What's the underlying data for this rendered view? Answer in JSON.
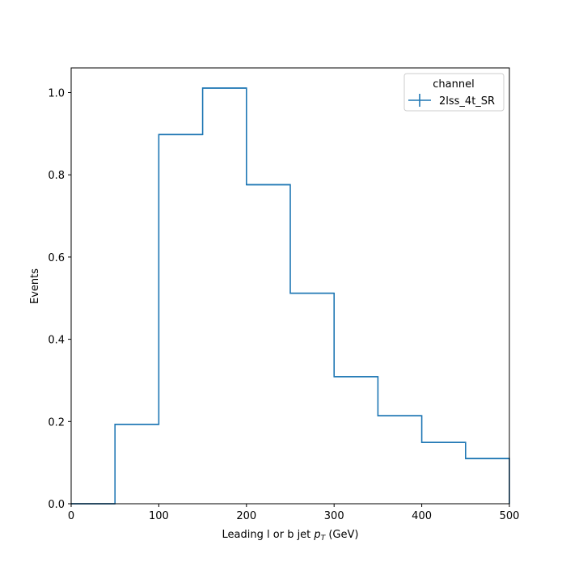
{
  "chart_data": {
    "type": "step",
    "title": "",
    "xlabel_prefix": "Leading l or b jet ",
    "xlabel_var": "p",
    "xlabel_sub": "T",
    "xlabel_suffix": " (GeV)",
    "ylabel": "Events",
    "xlim": [
      0,
      500
    ],
    "ylim": [
      0,
      1.06
    ],
    "xticks": [
      0,
      100,
      200,
      300,
      400,
      500
    ],
    "xtick_labels": [
      "0",
      "100",
      "200",
      "300",
      "400",
      "500"
    ],
    "yticks": [
      0.0,
      0.2,
      0.4,
      0.6,
      0.8,
      1.0
    ],
    "ytick_labels": [
      "0.0",
      "0.2",
      "0.4",
      "0.6",
      "0.8",
      "1.0"
    ],
    "grid": false,
    "legend": {
      "title": "channel",
      "placement": "top-right",
      "entries": [
        "2lss_4t_SR"
      ]
    },
    "series": [
      {
        "name": "2lss_4t_SR",
        "color": "#1f77b4",
        "bin_edges": [
          0,
          50,
          100,
          150,
          200,
          250,
          300,
          350,
          400,
          450,
          500
        ],
        "values": [
          0.0,
          0.193,
          0.898,
          1.011,
          0.776,
          0.512,
          0.309,
          0.214,
          0.149,
          0.11
        ]
      }
    ]
  }
}
